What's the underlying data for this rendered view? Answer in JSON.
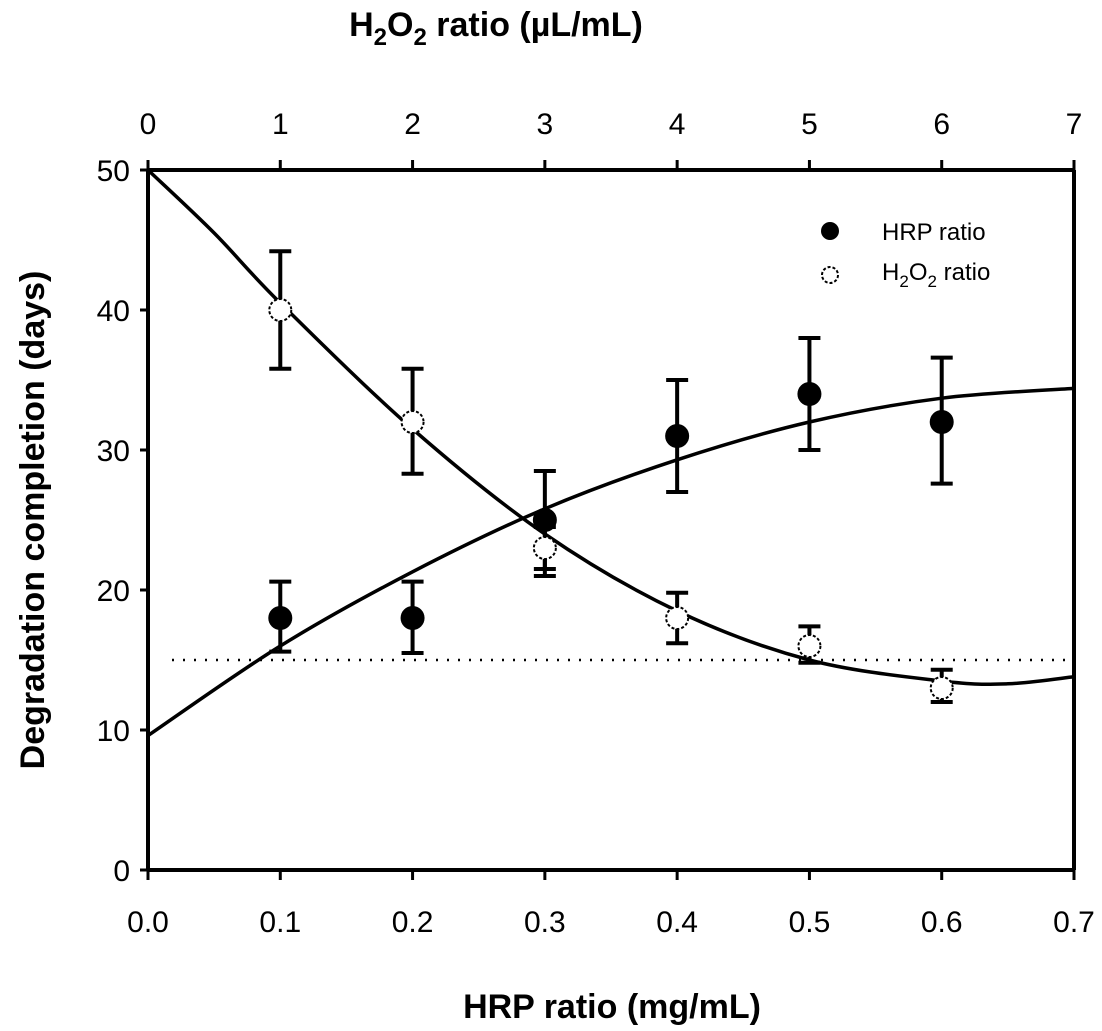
{
  "chart_data": {
    "type": "scatter",
    "title": "",
    "xlabel": "HRP ratio (mg/mL)",
    "x2label": {
      "main": "H",
      "sub1": "2",
      "mid": "O",
      "sub2": "2",
      "rest": " ratio (µL/mL)"
    },
    "ylabel": "Degradation completion (days)",
    "xlim": [
      0.0,
      0.7
    ],
    "x2lim": [
      0,
      7
    ],
    "ylim": [
      0,
      50
    ],
    "x_ticks": [
      "0.0",
      "0.1",
      "0.2",
      "0.3",
      "0.4",
      "0.5",
      "0.6",
      "0.7"
    ],
    "x2_ticks": [
      "0",
      "1",
      "2",
      "3",
      "4",
      "5",
      "6",
      "7"
    ],
    "y_ticks": [
      "0",
      "10",
      "20",
      "30",
      "40",
      "50"
    ],
    "grid": false,
    "legend_position": "top-right",
    "reference_line": {
      "y": 15,
      "style": "dotted"
    },
    "series": [
      {
        "name": "HRP ratio",
        "legend_label": {
          "main": "HRP ratio"
        },
        "marker": "filled-circle",
        "axis": "bottom",
        "x": [
          0.1,
          0.2,
          0.3,
          0.4,
          0.5,
          0.6
        ],
        "y": [
          18,
          18,
          25,
          31,
          34,
          32
        ],
        "err_low": [
          15.6,
          15.5,
          21.5,
          27.0,
          30.0,
          27.6
        ],
        "err_high": [
          20.6,
          20.6,
          28.5,
          35.0,
          38.0,
          36.6
        ],
        "fit": {
          "x": [
            0.0,
            0.1,
            0.2,
            0.3,
            0.4,
            0.5,
            0.6,
            0.7
          ],
          "y": [
            9.6,
            16.0,
            21.3,
            25.8,
            29.3,
            32.0,
            33.7,
            34.4
          ]
        }
      },
      {
        "name": "H2O2 ratio",
        "legend_label": {
          "main": "H",
          "sub1": "2",
          "mid": "O",
          "sub2": "2",
          "rest": " ratio"
        },
        "marker": "open-circle",
        "axis": "top",
        "x": [
          1,
          2,
          3,
          4,
          5,
          6
        ],
        "y": [
          40,
          32,
          23,
          18,
          16,
          13
        ],
        "err_low": [
          35.8,
          28.3,
          21.0,
          16.2,
          14.8,
          12.0
        ],
        "err_high": [
          44.2,
          35.8,
          24.5,
          19.8,
          17.4,
          14.3
        ],
        "fit": {
          "x": [
            0.0,
            0.5,
            1,
            2,
            3,
            4,
            5,
            6,
            6.5,
            7
          ],
          "y": [
            50.5,
            45.5,
            40.5,
            31.5,
            24.0,
            18.5,
            15.0,
            13.5,
            13.3,
            13.8
          ]
        }
      }
    ]
  }
}
